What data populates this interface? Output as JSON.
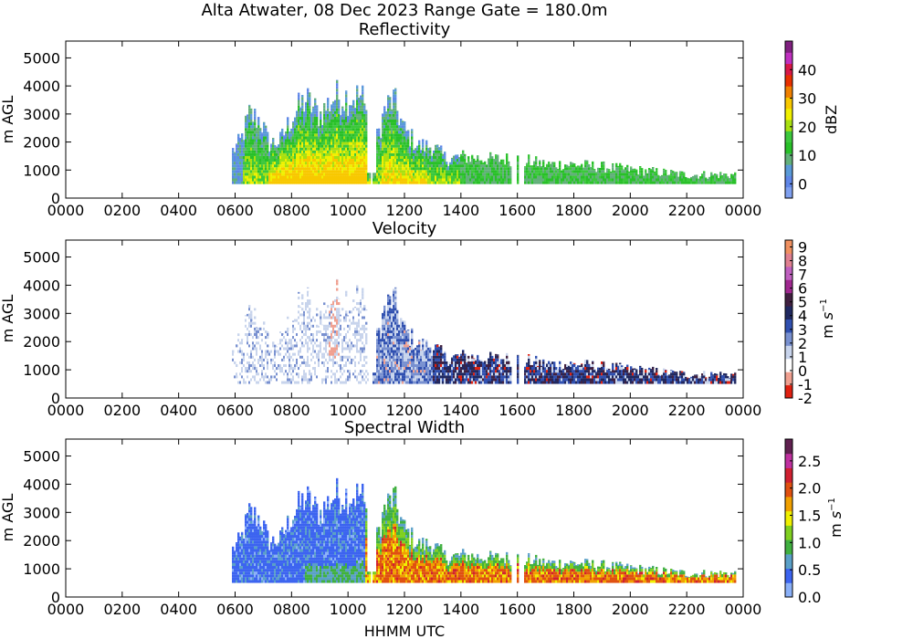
{
  "figure": {
    "title": "Alta Atwater, 08 Dec 2023 Range Gate = 180.0m",
    "xlabel": "HHMM UTC"
  },
  "chart_data": [
    {
      "type": "heatmap",
      "title": "Reflectivity",
      "ylabel": "m AGL",
      "xticks": [
        "0000",
        "0200",
        "0400",
        "0600",
        "0800",
        "1000",
        "1200",
        "1400",
        "1600",
        "1800",
        "2000",
        "2200",
        "0000"
      ],
      "yticks": [
        "0",
        "1000",
        "2000",
        "3000",
        "4000",
        "5000"
      ],
      "xlim_hours": [
        0,
        24
      ],
      "ylim": [
        0,
        5600
      ],
      "data_extent": {
        "start_hhmm": "0555",
        "end_hhmm": "2345",
        "base_m": 500
      },
      "echo_top_profile": {
        "time_hours": [
          5.9,
          6.2,
          6.5,
          6.9,
          7.2,
          7.6,
          8.0,
          8.5,
          9.0,
          9.5,
          10.0,
          10.5,
          10.9,
          11.3,
          11.6,
          12.0,
          12.5,
          13.0,
          13.5,
          14.0,
          15.0,
          16.0,
          17.0,
          18.0,
          19.0,
          20.0,
          21.0,
          22.0,
          23.0,
          23.8
        ],
        "top_m": [
          1800,
          2200,
          3200,
          3000,
          2100,
          2200,
          3100,
          3800,
          3200,
          3900,
          3900,
          3900,
          1800,
          3400,
          3800,
          2600,
          2000,
          2000,
          1500,
          1600,
          1500,
          1500,
          1300,
          1300,
          1200,
          1100,
          1000,
          900,
          900,
          900
        ]
      },
      "colorbar": {
        "label": "dBZ",
        "ticks": [
          "0",
          "10",
          "20",
          "30",
          "40"
        ],
        "range": [
          -5,
          50
        ]
      },
      "grid": false
    },
    {
      "type": "heatmap",
      "title": "Velocity",
      "ylabel": "m AGL",
      "xticks": [
        "0000",
        "0200",
        "0400",
        "0600",
        "0800",
        "1000",
        "1200",
        "1400",
        "1600",
        "1800",
        "2000",
        "2200",
        "0000"
      ],
      "yticks": [
        "0",
        "1000",
        "2000",
        "3000",
        "4000",
        "5000"
      ],
      "xlim_hours": [
        0,
        24
      ],
      "ylim": [
        0,
        5600
      ],
      "data_extent": {
        "start_hhmm": "0555",
        "end_hhmm": "2345",
        "base_m": 500
      },
      "colorbar": {
        "label": "m s^-1",
        "ticks": [
          "-2",
          "-1",
          "0",
          "1",
          "2",
          "3",
          "4",
          "5",
          "6",
          "7",
          "8",
          "9"
        ],
        "range": [
          -2,
          9.5
        ]
      },
      "grid": false
    },
    {
      "type": "heatmap",
      "title": "Spectral Width",
      "ylabel": "m AGL",
      "xticks": [
        "0000",
        "0200",
        "0400",
        "0600",
        "0800",
        "1000",
        "1200",
        "1400",
        "1600",
        "1800",
        "2000",
        "2200",
        "0000"
      ],
      "yticks": [
        "0",
        "1000",
        "2000",
        "3000",
        "4000",
        "5000"
      ],
      "xlim_hours": [
        0,
        24
      ],
      "ylim": [
        0,
        5600
      ],
      "data_extent": {
        "start_hhmm": "0555",
        "end_hhmm": "2345",
        "base_m": 500
      },
      "colorbar": {
        "label": "m s^-1",
        "ticks": [
          "0.0",
          "0.5",
          "1.0",
          "1.5",
          "2.0",
          "2.5"
        ],
        "range": [
          0,
          2.9
        ]
      },
      "grid": false
    }
  ],
  "colors": {
    "reflectivity_scale": [
      "#7fa0f0",
      "#5f86e8",
      "#5a9ad8",
      "#62b07a",
      "#28c028",
      "#3cc83c",
      "#a8e010",
      "#f0f000",
      "#f8c800",
      "#f08000",
      "#e83000",
      "#d81848",
      "#c030c0",
      "#802080"
    ],
    "velocity_scale": [
      "#e02010",
      "#f0a090",
      "#ffffff",
      "#c8d4ec",
      "#7890d0",
      "#3050b0",
      "#202860",
      "#402040",
      "#a02890",
      "#c060c0",
      "#e08090",
      "#f09060"
    ],
    "width_scale": [
      "#8ab0f8",
      "#3c64f0",
      "#5aa0c8",
      "#40b040",
      "#80d020",
      "#f0f000",
      "#f0a000",
      "#e05010",
      "#d02030",
      "#c030a0",
      "#602050"
    ]
  }
}
